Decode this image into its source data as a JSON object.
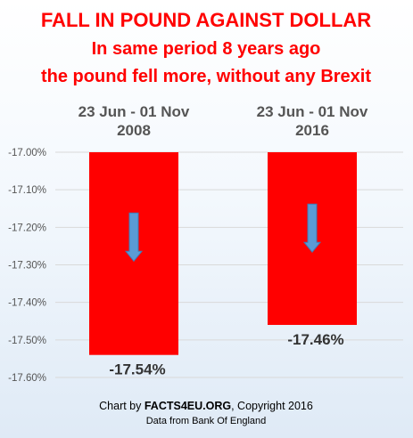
{
  "chart_data": {
    "type": "bar",
    "title": "FALL IN POUND AGAINST DOLLAR",
    "subtitle_lines": [
      "In same period 8 years ago",
      "the pound fell more, without any Brexit"
    ],
    "categories": [
      {
        "line1": "23 Jun - 01 Nov",
        "line2": "2008"
      },
      {
        "line1": "23 Jun - 01 Nov",
        "line2": "2016"
      }
    ],
    "values": [
      -17.54,
      -17.46
    ],
    "data_labels": [
      "-17.54%",
      "-17.46%"
    ],
    "ylim": [
      -17.6,
      -17.0
    ],
    "y_ticks": [
      -17.0,
      -17.1,
      -17.2,
      -17.3,
      -17.4,
      -17.5,
      -17.6
    ],
    "y_tick_labels": [
      "-17.00%",
      "-17.10%",
      "-17.20%",
      "-17.30%",
      "-17.40%",
      "-17.50%",
      "-17.60%"
    ],
    "grid": true,
    "bar_color": "#ff0000",
    "arrow_color": "#5b9bd5",
    "arrow_icon": "down-arrow-icon",
    "credit_prefix": "Chart by ",
    "credit_brand": "FACTS4EU.ORG",
    "credit_suffix": ", Copyright 2016",
    "source": "Data from Bank Of England"
  }
}
